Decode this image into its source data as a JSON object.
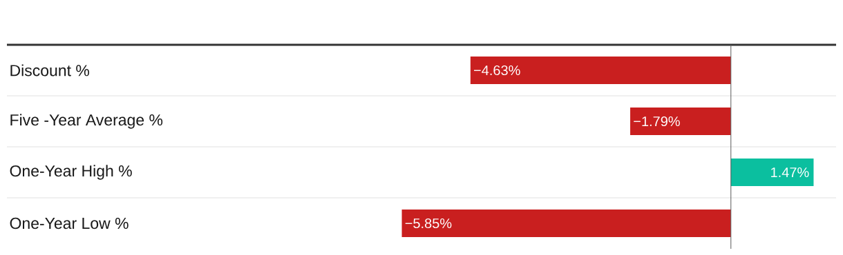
{
  "chart_data": {
    "type": "bar",
    "orientation": "horizontal",
    "categories": [
      "Discount %",
      "Five -Year Average %",
      "One-Year High %",
      "One-Year Low %"
    ],
    "values": [
      -4.63,
      -1.79,
      1.47,
      -5.85
    ],
    "colors": [
      "#c91f1f",
      "#c91f1f",
      "#0bbf9f",
      "#c91f1f"
    ],
    "value_labels": [
      "−4.63%",
      "−1.79%",
      "1.47%",
      "−5.85%"
    ],
    "xlim": [
      -12.87,
      1.87
    ],
    "grid": "y",
    "tick_labels": "y"
  }
}
